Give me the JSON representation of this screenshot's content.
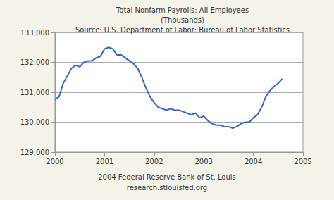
{
  "chart_data": {
    "type": "line",
    "title": "Total Nonfarm Payrolls: All Employees",
    "subtitle": "(Thousands)",
    "annotations": [
      "Source: U.S. Department of Labor: Bureau of Labor Statistics",
      "2004 Federal Reserve Bank of St. Louis",
      "research.stlouisfed.org"
    ],
    "x": [
      2000,
      2000.083,
      2000.167,
      2000.25,
      2000.333,
      2000.417,
      2000.5,
      2000.583,
      2000.667,
      2000.75,
      2000.833,
      2000.917,
      2001,
      2001.083,
      2001.167,
      2001.25,
      2001.333,
      2001.417,
      2001.5,
      2001.583,
      2001.667,
      2001.75,
      2001.833,
      2001.917,
      2002,
      2002.083,
      2002.167,
      2002.25,
      2002.333,
      2002.417,
      2002.5,
      2002.583,
      2002.667,
      2002.75,
      2002.833,
      2002.917,
      2003,
      2003.083,
      2003.167,
      2003.25,
      2003.333,
      2003.417,
      2003.5,
      2003.583,
      2003.667,
      2003.75,
      2003.833,
      2003.917,
      2004,
      2004.083,
      2004.167,
      2004.25,
      2004.333,
      2004.417,
      2004.5,
      2004.583
    ],
    "values": [
      130750,
      130850,
      131300,
      131550,
      131800,
      131900,
      131850,
      132000,
      132050,
      132050,
      132150,
      132200,
      132450,
      132500,
      132450,
      132250,
      132250,
      132150,
      132050,
      131950,
      131800,
      131500,
      131150,
      130850,
      130650,
      130500,
      130450,
      130400,
      130450,
      130400,
      130400,
      130350,
      130300,
      130250,
      130300,
      130150,
      130200,
      130050,
      129950,
      129900,
      129900,
      129850,
      129850,
      129800,
      129850,
      129950,
      130000,
      130000,
      130150,
      130250,
      130500,
      130850,
      131050,
      131200,
      131300,
      131450
    ],
    "color": "#3366cc",
    "xlim": [
      2000,
      2005
    ],
    "xticks": [
      2000,
      2001,
      2002,
      2003,
      2004,
      2005
    ],
    "ylim": [
      129000,
      133000
    ],
    "yticks": [
      {
        "value": 129000,
        "label": "129,000"
      },
      {
        "value": 130000,
        "label": "130,000"
      },
      {
        "value": 131000,
        "label": "131,000"
      },
      {
        "value": 132000,
        "label": "132,000"
      },
      {
        "value": 133000,
        "label": "133,000"
      }
    ],
    "grid": true
  }
}
